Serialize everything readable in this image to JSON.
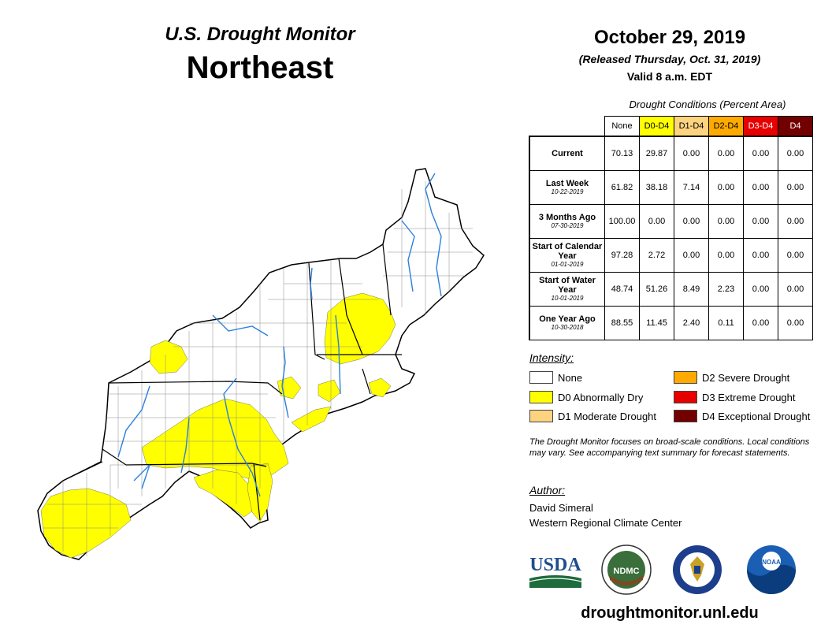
{
  "header": {
    "title": "U.S. Drought Monitor",
    "region": "Northeast",
    "date": "October 29, 2019",
    "released": "(Released Thursday, Oct. 31, 2019)",
    "valid": "Valid 8 a.m. EDT"
  },
  "conditions": {
    "caption": "Drought Conditions (Percent Area)",
    "columns": [
      "None",
      "D0-D4",
      "D1-D4",
      "D2-D4",
      "D3-D4",
      "D4"
    ],
    "column_colors": [
      "#ffffff",
      "#ffff00",
      "#fcd37f",
      "#ffaa00",
      "#e60000",
      "#730000"
    ],
    "rows": [
      {
        "label": "Current",
        "date": "",
        "values": [
          "70.13",
          "29.87",
          "0.00",
          "0.00",
          "0.00",
          "0.00"
        ]
      },
      {
        "label": "Last Week",
        "date": "10-22-2019",
        "values": [
          "61.82",
          "38.18",
          "7.14",
          "0.00",
          "0.00",
          "0.00"
        ]
      },
      {
        "label": "3 Months Ago",
        "date": "07-30-2019",
        "values": [
          "100.00",
          "0.00",
          "0.00",
          "0.00",
          "0.00",
          "0.00"
        ]
      },
      {
        "label": "Start of Calendar Year",
        "date": "01-01-2019",
        "values": [
          "97.28",
          "2.72",
          "0.00",
          "0.00",
          "0.00",
          "0.00"
        ]
      },
      {
        "label": "Start of Water Year",
        "date": "10-01-2019",
        "values": [
          "48.74",
          "51.26",
          "8.49",
          "2.23",
          "0.00",
          "0.00"
        ]
      },
      {
        "label": "One Year Ago",
        "date": "10-30-2018",
        "values": [
          "88.55",
          "11.45",
          "2.40",
          "0.11",
          "0.00",
          "0.00"
        ]
      }
    ]
  },
  "intensity": {
    "heading": "Intensity:",
    "items": [
      {
        "label": "None",
        "color": "#ffffff"
      },
      {
        "label": "D0 Abnormally Dry",
        "color": "#ffff00"
      },
      {
        "label": "D1 Moderate Drought",
        "color": "#fcd37f"
      },
      {
        "label": "D2 Severe Drought",
        "color": "#ffaa00"
      },
      {
        "label": "D3 Extreme Drought",
        "color": "#e60000"
      },
      {
        "label": "D4 Exceptional Drought",
        "color": "#730000"
      }
    ]
  },
  "note": "The Drought Monitor focuses on broad-scale conditions. Local conditions may vary. See accompanying text summary for forecast statements.",
  "author": {
    "heading": "Author:",
    "name": "David Simeral",
    "org": "Western Regional Climate Center"
  },
  "logos": {
    "usda": "USDA",
    "ndmc": "NDMC",
    "noaa": "NOAA"
  },
  "website": "droughtmonitor.unl.edu"
}
